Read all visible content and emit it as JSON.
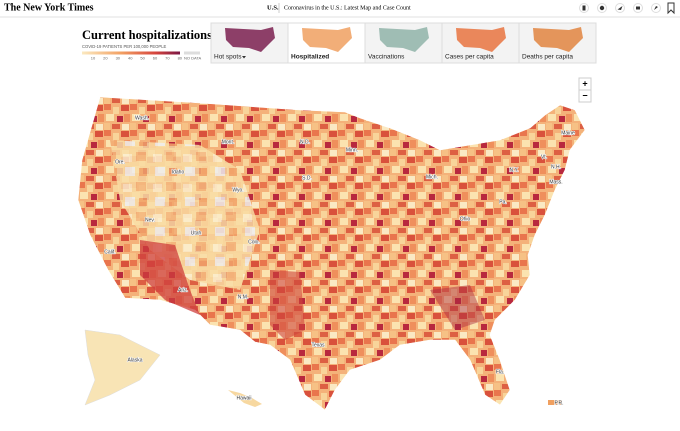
{
  "header": {
    "logo": "The New York Times",
    "section": "U.S.",
    "headline": "Coronavirus in the U.S.: Latest Map and Case Count"
  },
  "legend": {
    "title": "Current hospitalizations",
    "subtitle": "COVID-19 PATIENTS PER 100,000 PEOPLE",
    "ticks": [
      10,
      20,
      30,
      40,
      50,
      60,
      70,
      80
    ],
    "no_data": "NO DATA"
  },
  "tabs": [
    "Hot spots",
    "Hospitalized",
    "Vaccinations",
    "Cases per capita",
    "Deaths per capita"
  ],
  "zoom": {
    "in": "+",
    "out": "−"
  },
  "map_labels": [
    "Wash.",
    "Mont.",
    "N.D.",
    "Minn.",
    "Ore.",
    "Idaho",
    "S.D.",
    "Wyo.",
    "Mich.",
    "N.Y.",
    "Vt.",
    "N.H.",
    "Maine",
    "Mass.",
    "Nev.",
    "Utah",
    "Colo.",
    "Calif.",
    "Pa.",
    "Ohio",
    "Ariz.",
    "N.M.",
    "Texas",
    "Fla.",
    "Alaska",
    "Hawaii",
    "P.R."
  ]
}
